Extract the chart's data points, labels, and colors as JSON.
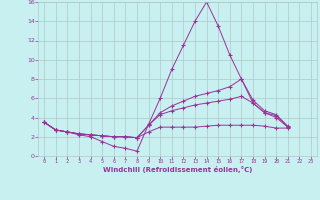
{
  "bg_color": "#c8f0f0",
  "line_color": "#993399",
  "grid_color": "#b0c8c8",
  "xlabel": "Windchill (Refroidissement éolien,°C)",
  "xlabel_color": "#993399",
  "xtick_color": "#993399",
  "ytick_color": "#993399",
  "xlim": [
    -0.5,
    23.5
  ],
  "ylim": [
    0,
    16
  ],
  "yticks": [
    0,
    2,
    4,
    6,
    8,
    10,
    12,
    14,
    16
  ],
  "xticks": [
    0,
    1,
    2,
    3,
    4,
    5,
    6,
    7,
    8,
    9,
    10,
    11,
    12,
    13,
    14,
    15,
    16,
    17,
    18,
    19,
    20,
    21,
    22,
    23
  ],
  "series": [
    {
      "x": [
        0,
        1,
        2,
        3,
        4,
        5,
        6,
        7,
        8,
        9,
        10,
        11,
        12,
        13,
        14,
        15,
        16,
        17,
        18,
        19,
        20,
        21,
        22,
        23
      ],
      "y": [
        3.5,
        2.7,
        2.5,
        2.2,
        2.0,
        1.5,
        1.0,
        0.8,
        0.5,
        3.3,
        6.0,
        9.0,
        11.5,
        14.0,
        16.0,
        13.5,
        10.5,
        8.0,
        5.5,
        4.5,
        4.2,
        3.0,
        null,
        null
      ]
    },
    {
      "x": [
        0,
        1,
        2,
        3,
        4,
        5,
        6,
        7,
        8,
        9,
        10,
        11,
        12,
        13,
        14,
        15,
        16,
        17,
        18,
        19,
        20,
        21,
        22,
        23
      ],
      "y": [
        3.5,
        2.7,
        2.5,
        2.3,
        2.2,
        2.1,
        2.0,
        2.0,
        1.9,
        3.2,
        4.5,
        5.2,
        5.7,
        6.2,
        6.5,
        6.8,
        7.2,
        8.0,
        5.8,
        4.7,
        4.3,
        3.1,
        null,
        null
      ]
    },
    {
      "x": [
        0,
        1,
        2,
        3,
        4,
        5,
        6,
        7,
        8,
        9,
        10,
        11,
        12,
        13,
        14,
        15,
        16,
        17,
        18,
        19,
        20,
        21,
        22,
        23
      ],
      "y": [
        3.5,
        2.7,
        2.5,
        2.3,
        2.2,
        2.1,
        2.0,
        2.0,
        1.9,
        3.2,
        4.3,
        4.7,
        5.0,
        5.3,
        5.5,
        5.7,
        5.9,
        6.2,
        5.5,
        4.5,
        4.0,
        3.0,
        null,
        null
      ]
    },
    {
      "x": [
        0,
        1,
        2,
        3,
        4,
        5,
        6,
        7,
        8,
        9,
        10,
        11,
        12,
        13,
        14,
        15,
        16,
        17,
        18,
        19,
        20,
        21,
        22,
        23
      ],
      "y": [
        3.5,
        2.7,
        2.5,
        2.3,
        2.2,
        2.1,
        2.0,
        2.0,
        1.9,
        2.5,
        3.0,
        3.0,
        3.0,
        3.0,
        3.1,
        3.2,
        3.2,
        3.2,
        3.2,
        3.1,
        2.9,
        2.9,
        null,
        null
      ]
    }
  ]
}
